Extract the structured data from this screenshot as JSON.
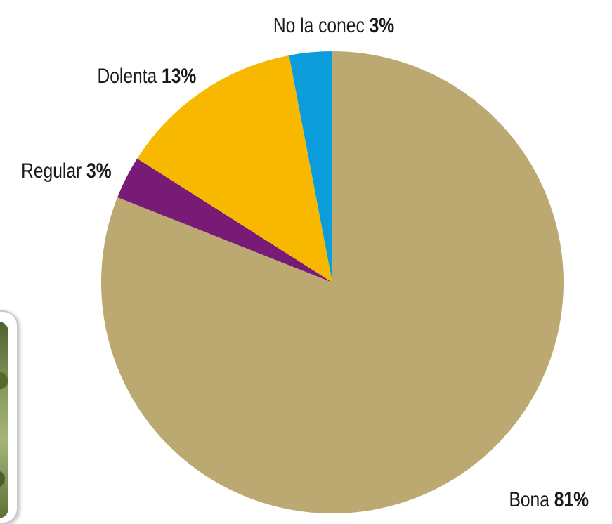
{
  "chart_data": {
    "type": "pie",
    "title": "",
    "start_angle_deg": 0,
    "direction": "clockwise",
    "slices": [
      {
        "label": "Bona",
        "value": 81,
        "display": "81%",
        "color": "#bca871"
      },
      {
        "label": "Regular",
        "value": 3,
        "display": "3%",
        "color": "#771b77"
      },
      {
        "label": "Dolenta",
        "value": 13,
        "display": "13%",
        "color": "#f8b800"
      },
      {
        "label": "No la conec",
        "value": 3,
        "display": "3%",
        "color": "#0b9cdb"
      }
    ],
    "legend": "none",
    "labels": "outside"
  }
}
